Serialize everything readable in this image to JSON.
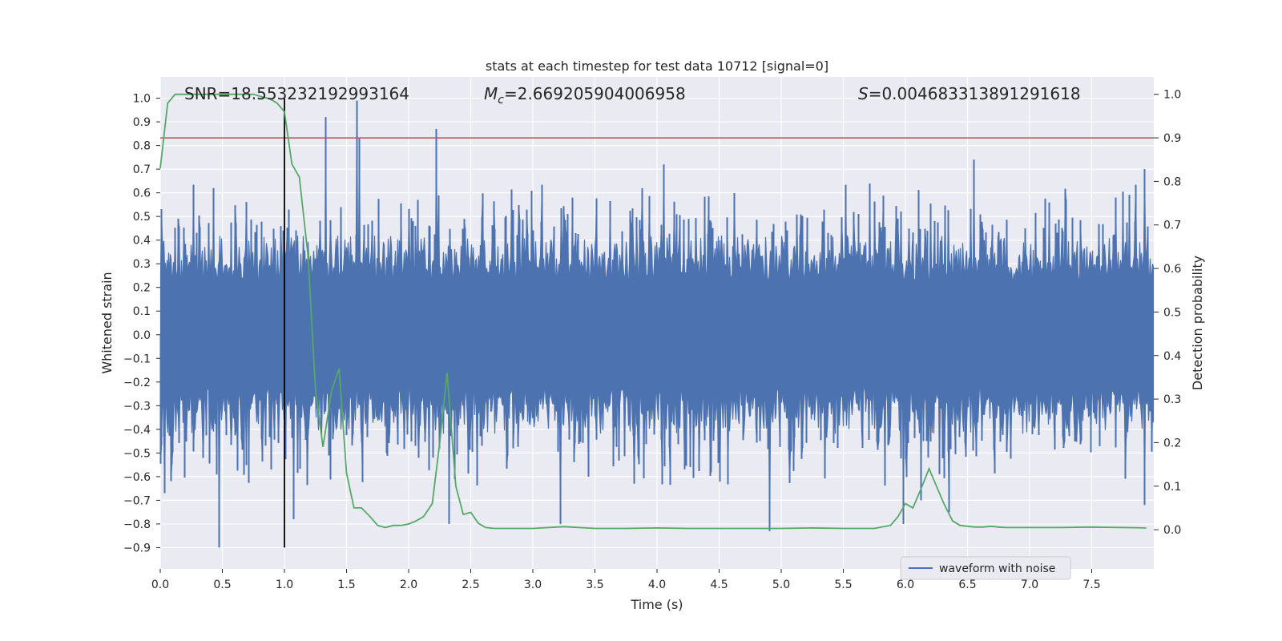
{
  "chart_data": {
    "type": "line",
    "title": "stats at each timestep for test data 10712 [signal=0]",
    "xlabel": "Time (s)",
    "ylabel": "Whitened strain",
    "y2label": "Detection probability",
    "xlim": [
      0.0,
      8.0
    ],
    "ylim": [
      -0.99,
      1.09
    ],
    "y2lim": [
      -0.09,
      1.04
    ],
    "xticks": [
      "0.0",
      "0.5",
      "1.0",
      "1.5",
      "2.0",
      "2.5",
      "3.0",
      "3.5",
      "4.0",
      "4.5",
      "5.0",
      "5.5",
      "6.0",
      "6.5",
      "7.0",
      "7.5"
    ],
    "yticks": [
      "1.0",
      "0.9",
      "0.8",
      "0.7",
      "0.6",
      "0.5",
      "0.4",
      "0.3",
      "0.2",
      "0.1",
      "0.0",
      "−0.1",
      "−0.2",
      "−0.3",
      "−0.4",
      "−0.5",
      "−0.6",
      "−0.7",
      "−0.8",
      "−0.9"
    ],
    "y2ticks": [
      "1.0",
      "0.9",
      "0.8",
      "0.7",
      "0.6",
      "0.5",
      "0.4",
      "0.3",
      "0.2",
      "0.1",
      "0.0"
    ],
    "grid": true,
    "legend": {
      "placement": "bottom-right",
      "entries": [
        "waveform with noise"
      ]
    },
    "annotations": {
      "snr_text": "SNR=18.553232192993164",
      "mc_prefix": "M",
      "mc_sub": "c",
      "mc_value": "=2.669205904006958",
      "s_prefix": "S",
      "s_value": "=0.004683313891291618"
    },
    "threshold_line": {
      "axis": "y2",
      "value": 0.9,
      "color": "#c44e52"
    },
    "vertical_line": {
      "x": 1.0,
      "y_from": -0.9,
      "y_to": 1.0,
      "color": "#000000"
    },
    "colors": {
      "waveform": "#4c72b0",
      "probability": "#55a868",
      "background": "#eaeaf2",
      "grid": "#ffffff"
    },
    "waveform": {
      "name": "waveform with noise",
      "axis": "y",
      "x_range": [
        0.0,
        8.0
      ],
      "typical_amplitude": 0.2,
      "peaks": [
        {
          "x": 1.33,
          "y": 0.92
        },
        {
          "x": 1.58,
          "y": 0.99
        },
        {
          "x": 1.6,
          "y": 0.83
        },
        {
          "x": 2.22,
          "y": 0.87
        },
        {
          "x": 0.47,
          "y": -0.9
        },
        {
          "x": 2.32,
          "y": -0.8
        },
        {
          "x": 3.22,
          "y": -0.8
        },
        {
          "x": 4.05,
          "y": 0.72
        },
        {
          "x": 4.9,
          "y": -0.83
        },
        {
          "x": 5.98,
          "y": -0.8
        },
        {
          "x": 6.55,
          "y": 0.74
        },
        {
          "x": 6.35,
          "y": -0.75
        },
        {
          "x": 7.92,
          "y": 0.7
        },
        {
          "x": 7.92,
          "y": -0.72
        },
        {
          "x": 0.03,
          "y": -0.67
        },
        {
          "x": 1.07,
          "y": -0.78
        },
        {
          "x": 6.12,
          "y": -0.7
        }
      ]
    },
    "probability": {
      "name": "detection probability",
      "axis": "y2",
      "x": [
        0.0,
        0.06,
        0.12,
        0.19,
        0.25,
        0.31,
        0.38,
        0.44,
        0.5,
        0.56,
        0.62,
        0.69,
        0.75,
        0.81,
        0.88,
        0.94,
        1.0,
        1.06,
        1.12,
        1.19,
        1.25,
        1.31,
        1.38,
        1.44,
        1.5,
        1.56,
        1.62,
        1.69,
        1.75,
        1.81,
        1.88,
        1.94,
        2.0,
        2.06,
        2.12,
        2.19,
        2.25,
        2.31,
        2.38,
        2.44,
        2.5,
        2.56,
        2.62,
        2.69,
        2.75,
        2.81,
        2.88,
        2.94,
        3.0,
        3.25,
        3.5,
        3.75,
        4.0,
        4.25,
        4.5,
        4.75,
        5.0,
        5.25,
        5.5,
        5.75,
        5.88,
        5.94,
        6.0,
        6.06,
        6.12,
        6.19,
        6.25,
        6.31,
        6.38,
        6.44,
        6.5,
        6.56,
        6.62,
        6.69,
        6.75,
        6.81,
        6.88,
        6.94,
        7.0,
        7.25,
        7.5,
        7.75,
        7.94
      ],
      "values": [
        0.83,
        0.98,
        1.0,
        1.0,
        1.0,
        1.0,
        1.0,
        1.0,
        1.0,
        1.0,
        1.0,
        1.0,
        1.0,
        0.995,
        0.99,
        0.98,
        0.96,
        0.84,
        0.81,
        0.63,
        0.32,
        0.19,
        0.32,
        0.37,
        0.13,
        0.05,
        0.05,
        0.03,
        0.01,
        0.005,
        0.01,
        0.01,
        0.013,
        0.02,
        0.03,
        0.06,
        0.2,
        0.36,
        0.1,
        0.035,
        0.04,
        0.015,
        0.005,
        0.003,
        0.003,
        0.003,
        0.003,
        0.003,
        0.003,
        0.007,
        0.003,
        0.003,
        0.004,
        0.003,
        0.003,
        0.003,
        0.003,
        0.004,
        0.003,
        0.003,
        0.01,
        0.03,
        0.06,
        0.05,
        0.09,
        0.14,
        0.1,
        0.06,
        0.02,
        0.01,
        0.008,
        0.006,
        0.006,
        0.008,
        0.006,
        0.005,
        0.005,
        0.005,
        0.005,
        0.005,
        0.006,
        0.005,
        0.004
      ]
    }
  }
}
